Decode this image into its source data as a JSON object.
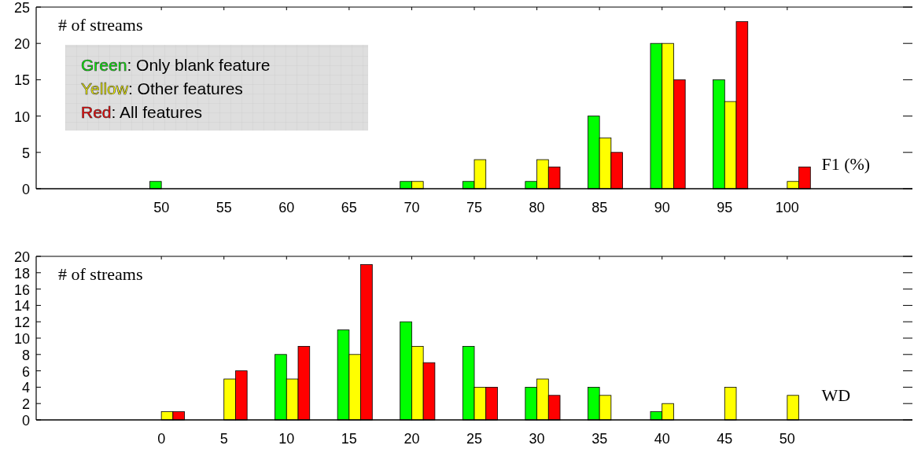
{
  "chart_data": [
    {
      "type": "bar",
      "ylabel": "# of streams",
      "xlabel": "F1 (%)",
      "categories": [
        null,
        null,
        "50",
        "55",
        "60",
        "65",
        "70",
        "75",
        "80",
        "85",
        "90",
        "95",
        "100",
        null,
        null
      ],
      "series": [
        {
          "name": "Green: Only blank feature",
          "color": "#00ff00",
          "values": [
            null,
            null,
            1,
            0,
            0,
            0,
            1,
            1,
            1,
            10,
            20,
            15,
            0,
            null,
            null
          ]
        },
        {
          "name": "Yellow: Other features",
          "color": "#ffff00",
          "values": [
            null,
            null,
            0,
            0,
            0,
            0,
            1,
            4,
            4,
            7,
            20,
            12,
            1,
            null,
            null
          ]
        },
        {
          "name": "Red: All features",
          "color": "#ff0000",
          "values": [
            null,
            null,
            0,
            0,
            0,
            0,
            0,
            0,
            3,
            5,
            15,
            23,
            3,
            null,
            null
          ]
        }
      ],
      "ylim": [
        0,
        25
      ],
      "yticks": [
        0,
        5,
        10,
        15,
        20,
        25
      ],
      "legend": "top left",
      "grid": false
    },
    {
      "type": "bar",
      "ylabel": "# of streams",
      "xlabel": "WD",
      "categories": [
        null,
        null,
        "0",
        "5",
        "10",
        "15",
        "20",
        "25",
        "30",
        "35",
        "40",
        "45",
        "50",
        null,
        null
      ],
      "series": [
        {
          "color": "#00ff00",
          "values": [
            null,
            null,
            0,
            0,
            8,
            11,
            12,
            9,
            4,
            4,
            1,
            0,
            0,
            null,
            null
          ]
        },
        {
          "color": "#ffff00",
          "values": [
            null,
            null,
            1,
            5,
            5,
            8,
            9,
            4,
            5,
            3,
            2,
            4,
            3,
            null,
            null
          ]
        },
        {
          "color": "#ff0000",
          "values": [
            null,
            null,
            1,
            6,
            9,
            19,
            7,
            4,
            3,
            0,
            0,
            0,
            0,
            null,
            null
          ]
        }
      ],
      "ylim": [
        0,
        20
      ],
      "yticks": [
        0,
        2,
        4,
        6,
        8,
        10,
        12,
        14,
        16,
        18,
        20
      ],
      "legend": false,
      "grid": false
    }
  ]
}
